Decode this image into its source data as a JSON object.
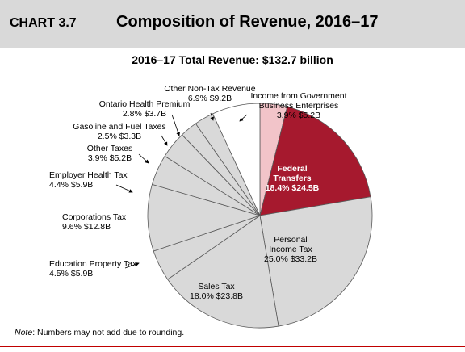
{
  "header": {
    "chart_number": "CHART 3.7",
    "title": "Composition of Revenue, 2016–17"
  },
  "chart_data": {
    "type": "pie",
    "title": "Composition of Revenue, 2016–17",
    "subtitle": "2016–17 Total Revenue: $132.7 billion",
    "unit": "$ billion",
    "slices": [
      {
        "name": "Income from Government Business Enterprises",
        "percent": 3.9,
        "value": 5.2,
        "label_lines": [
          "Income from Government",
          "Business Enterprises",
          "3.9%  $5.2B"
        ],
        "color": "#f2c4c9"
      },
      {
        "name": "Federal Transfers",
        "percent": 18.4,
        "value": 24.5,
        "label_lines": [
          "Federal",
          "Transfers",
          "18.4%  $24.5B"
        ],
        "color": "#a6192e"
      },
      {
        "name": "Personal Income Tax",
        "percent": 25.0,
        "value": 33.2,
        "label_lines": [
          "Personal",
          "Income Tax",
          "25.0%  $33.2B"
        ],
        "color": "#d9d9d9"
      },
      {
        "name": "Sales Tax",
        "percent": 18.0,
        "value": 23.8,
        "label_lines": [
          "Sales Tax",
          "18.0%  $23.8B"
        ],
        "color": "#d9d9d9"
      },
      {
        "name": "Education Property Tax",
        "percent": 4.5,
        "value": 5.9,
        "label_lines": [
          "Education Property Tax",
          "4.5%  $5.9B"
        ],
        "color": "#d9d9d9"
      },
      {
        "name": "Corporations Tax",
        "percent": 9.6,
        "value": 12.8,
        "label_lines": [
          "Corporations Tax",
          "9.6%  $12.8B"
        ],
        "color": "#d9d9d9"
      },
      {
        "name": "Employer Health Tax",
        "percent": 4.4,
        "value": 5.9,
        "label_lines": [
          "Employer Health Tax",
          "4.4%  $5.9B"
        ],
        "color": "#d9d9d9"
      },
      {
        "name": "Other Taxes",
        "percent": 3.9,
        "value": 5.2,
        "label_lines": [
          "Other Taxes",
          "3.9%  $5.2B"
        ],
        "color": "#d9d9d9"
      },
      {
        "name": "Gasoline and Fuel Taxes",
        "percent": 2.5,
        "value": 3.3,
        "label_lines": [
          "Gasoline and Fuel Taxes",
          "2.5%  $3.3B"
        ],
        "color": "#d9d9d9"
      },
      {
        "name": "Ontario Health Premium",
        "percent": 2.8,
        "value": 3.7,
        "label_lines": [
          "Ontario Health Premium",
          "2.8%  $3.7B"
        ],
        "color": "#d9d9d9"
      },
      {
        "name": "Other Non-Tax Revenue",
        "percent": 6.9,
        "value": 9.2,
        "label_lines": [
          "Other Non-Tax Revenue",
          "6.9%  $9.2B"
        ],
        "color": "#ffffff"
      }
    ]
  },
  "note": {
    "label": "Note",
    "text": ": Numbers may not add due to rounding."
  },
  "colors": {
    "accent": "#a6192e",
    "header_band": "#d9d9d9",
    "slice_border": "#595959"
  }
}
